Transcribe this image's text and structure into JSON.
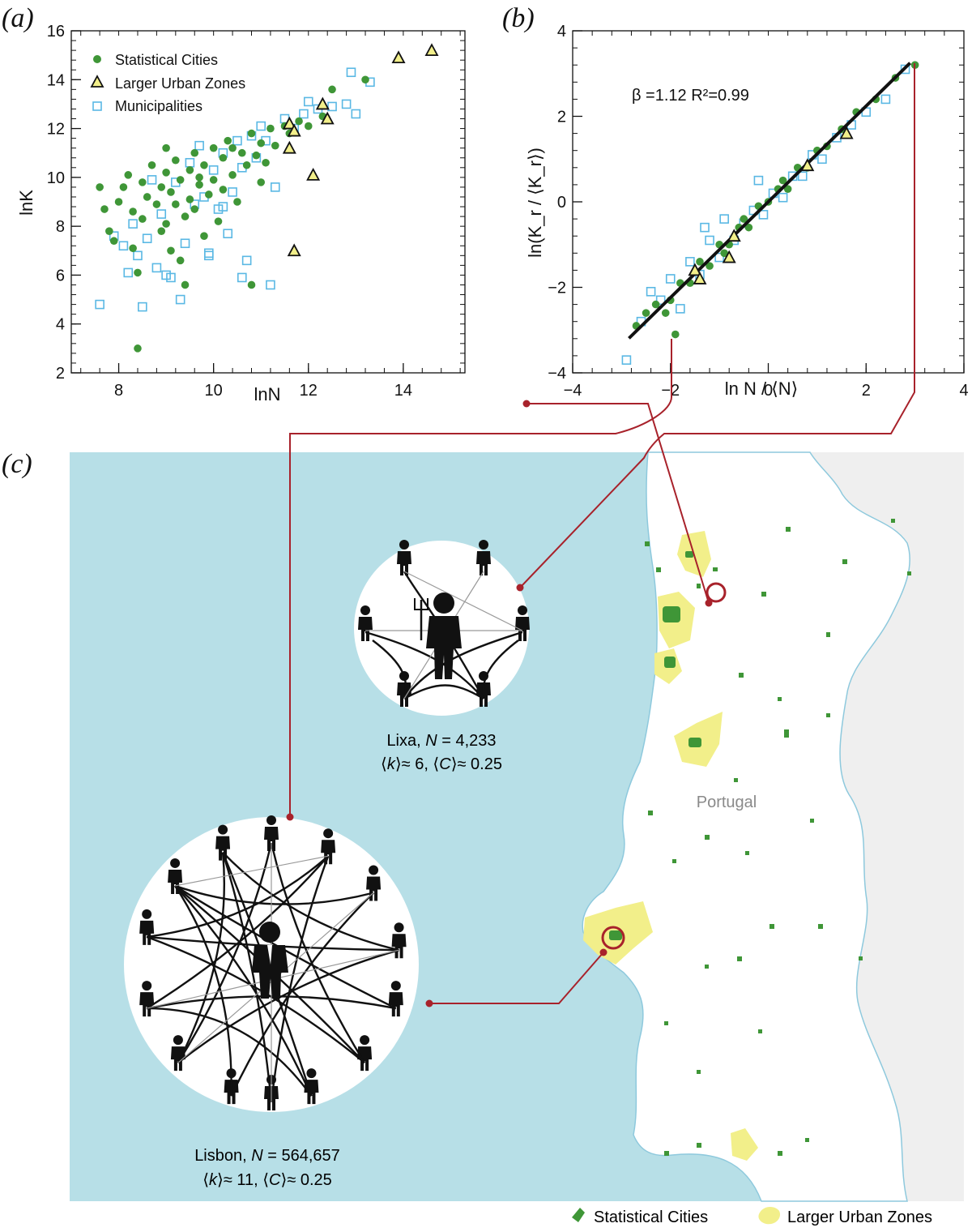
{
  "panels": {
    "a": "(a)",
    "b": "(b)",
    "c": "(c)"
  },
  "colors": {
    "statistical": "#3f9637",
    "luz_fill": "#f2ef8a",
    "municipality": "#5ab8e4",
    "sea": "#b7dfe7",
    "land": "#ffffff",
    "foreign": "#efefef",
    "link": "#a8222b",
    "fit": "#111111"
  },
  "chart_data": [
    {
      "id": "a",
      "type": "scatter",
      "title": "",
      "xlabel": "lnN",
      "ylabel": "lnK",
      "xlim": [
        7,
        15.3
      ],
      "ylim": [
        2,
        16
      ],
      "xticks": [
        8,
        10,
        12,
        14
      ],
      "yticks": [
        2,
        4,
        6,
        8,
        10,
        12,
        14,
        16
      ],
      "legend": {
        "position": "top-left",
        "entries": [
          "Statistical Cities",
          "Larger Urban Zones",
          "Municipalities"
        ]
      },
      "series": [
        {
          "name": "Statistical Cities",
          "marker": "circle",
          "points": [
            [
              7.6,
              9.6
            ],
            [
              7.7,
              8.7
            ],
            [
              7.8,
              7.8
            ],
            [
              7.9,
              7.4
            ],
            [
              8.0,
              9.0
            ],
            [
              8.1,
              9.6
            ],
            [
              8.2,
              10.1
            ],
            [
              8.3,
              8.6
            ],
            [
              8.3,
              7.1
            ],
            [
              8.4,
              6.1
            ],
            [
              8.5,
              9.8
            ],
            [
              8.5,
              8.3
            ],
            [
              8.6,
              9.2
            ],
            [
              8.7,
              10.5
            ],
            [
              8.8,
              8.9
            ],
            [
              8.9,
              9.6
            ],
            [
              8.9,
              7.8
            ],
            [
              9.0,
              10.2
            ],
            [
              9.0,
              8.1
            ],
            [
              9.1,
              9.4
            ],
            [
              9.1,
              7.0
            ],
            [
              9.2,
              10.7
            ],
            [
              9.2,
              8.9
            ],
            [
              9.3,
              9.9
            ],
            [
              9.3,
              6.6
            ],
            [
              9.4,
              8.4
            ],
            [
              9.4,
              5.6
            ],
            [
              9.5,
              10.3
            ],
            [
              9.5,
              9.1
            ],
            [
              9.6,
              11.0
            ],
            [
              9.6,
              8.7
            ],
            [
              9.7,
              9.7
            ],
            [
              9.8,
              10.5
            ],
            [
              9.8,
              7.6
            ],
            [
              9.9,
              9.3
            ],
            [
              10.0,
              11.2
            ],
            [
              10.0,
              9.9
            ],
            [
              10.1,
              8.2
            ],
            [
              10.2,
              10.8
            ],
            [
              10.2,
              9.5
            ],
            [
              10.3,
              11.5
            ],
            [
              10.4,
              10.1
            ],
            [
              10.5,
              9.0
            ],
            [
              10.6,
              11.0
            ],
            [
              10.7,
              10.5
            ],
            [
              10.8,
              11.8
            ],
            [
              10.9,
              10.9
            ],
            [
              11.0,
              11.4
            ],
            [
              11.0,
              9.8
            ],
            [
              11.1,
              10.6
            ],
            [
              11.2,
              12.0
            ],
            [
              11.3,
              11.3
            ],
            [
              11.5,
              12.1
            ],
            [
              11.6,
              11.8
            ],
            [
              11.8,
              12.3
            ],
            [
              12.0,
              12.1
            ],
            [
              12.3,
              12.5
            ],
            [
              12.5,
              13.6
            ],
            [
              13.2,
              14.0
            ],
            [
              10.8,
              5.6
            ],
            [
              8.4,
              3.0
            ],
            [
              9.0,
              11.2
            ],
            [
              9.7,
              10.0
            ],
            [
              10.4,
              11.2
            ]
          ]
        },
        {
          "name": "Larger Urban Zones",
          "marker": "triangle",
          "points": [
            [
              14.6,
              15.2
            ],
            [
              13.9,
              14.9
            ],
            [
              12.3,
              13.0
            ],
            [
              12.4,
              12.4
            ],
            [
              11.6,
              12.2
            ],
            [
              11.7,
              11.9
            ],
            [
              11.6,
              11.2
            ],
            [
              12.1,
              10.1
            ],
            [
              11.7,
              7.0
            ]
          ]
        },
        {
          "name": "Municipalities",
          "marker": "square",
          "points": [
            [
              7.6,
              4.8
            ],
            [
              7.9,
              7.6
            ],
            [
              8.1,
              7.2
            ],
            [
              8.2,
              6.1
            ],
            [
              8.3,
              8.1
            ],
            [
              8.4,
              6.8
            ],
            [
              8.5,
              4.7
            ],
            [
              8.6,
              7.5
            ],
            [
              8.7,
              9.9
            ],
            [
              8.8,
              6.3
            ],
            [
              8.9,
              8.5
            ],
            [
              9.0,
              6.0
            ],
            [
              9.1,
              5.9
            ],
            [
              9.2,
              9.8
            ],
            [
              9.3,
              5.0
            ],
            [
              9.4,
              7.3
            ],
            [
              9.5,
              10.6
            ],
            [
              9.6,
              8.9
            ],
            [
              9.7,
              11.3
            ],
            [
              9.8,
              9.2
            ],
            [
              9.9,
              6.8
            ],
            [
              10.0,
              10.3
            ],
            [
              10.1,
              8.7
            ],
            [
              10.2,
              11.0
            ],
            [
              10.3,
              7.7
            ],
            [
              10.4,
              9.4
            ],
            [
              10.5,
              11.5
            ],
            [
              10.6,
              10.4
            ],
            [
              10.7,
              6.6
            ],
            [
              10.8,
              11.7
            ],
            [
              10.9,
              10.8
            ],
            [
              11.0,
              12.1
            ],
            [
              11.1,
              11.5
            ],
            [
              11.2,
              5.6
            ],
            [
              11.3,
              9.6
            ],
            [
              11.5,
              12.4
            ],
            [
              11.7,
              12.0
            ],
            [
              11.9,
              12.6
            ],
            [
              12.0,
              13.1
            ],
            [
              12.2,
              12.8
            ],
            [
              12.5,
              12.9
            ],
            [
              12.8,
              13.0
            ],
            [
              13.0,
              12.6
            ],
            [
              13.3,
              13.9
            ],
            [
              10.6,
              5.9
            ],
            [
              9.9,
              6.9
            ],
            [
              10.2,
              8.8
            ],
            [
              12.9,
              14.3
            ]
          ]
        }
      ]
    },
    {
      "id": "b",
      "type": "scatter",
      "title": "",
      "xlabel": "ln N / ⟨N⟩",
      "ylabel": "ln(K_r / ⟨K_r⟩)",
      "xlim": [
        -4,
        4
      ],
      "ylim": [
        -4,
        4
      ],
      "xticks": [
        -4,
        -2,
        0,
        2,
        4
      ],
      "yticks": [
        -4,
        -2,
        0,
        2,
        4
      ],
      "annotation": "β =1.12  R²=0.99",
      "fit": {
        "slope": 1.12,
        "intercept": 0,
        "x_range": [
          -2.85,
          2.9
        ]
      },
      "series": [
        {
          "name": "Statistical Cities",
          "marker": "circle",
          "points": [
            [
              -2.7,
              -2.9
            ],
            [
              -2.5,
              -2.6
            ],
            [
              -2.3,
              -2.4
            ],
            [
              -2.1,
              -2.6
            ],
            [
              -2.0,
              -2.3
            ],
            [
              -1.9,
              -3.1
            ],
            [
              -1.8,
              -1.9
            ],
            [
              -1.6,
              -1.9
            ],
            [
              -1.4,
              -1.4
            ],
            [
              -1.2,
              -1.5
            ],
            [
              -1.0,
              -1.0
            ],
            [
              -0.8,
              -1.0
            ],
            [
              -0.6,
              -0.6
            ],
            [
              -0.4,
              -0.6
            ],
            [
              -0.2,
              -0.1
            ],
            [
              0.0,
              0.0
            ],
            [
              0.2,
              0.3
            ],
            [
              0.4,
              0.3
            ],
            [
              0.6,
              0.8
            ],
            [
              0.8,
              0.8
            ],
            [
              1.0,
              1.2
            ],
            [
              1.2,
              1.3
            ],
            [
              1.5,
              1.7
            ],
            [
              1.8,
              2.1
            ],
            [
              2.2,
              2.4
            ],
            [
              2.6,
              2.9
            ],
            [
              3.0,
              3.2
            ],
            [
              -0.9,
              -1.2
            ],
            [
              -0.5,
              -0.4
            ],
            [
              0.3,
              0.5
            ]
          ]
        },
        {
          "name": "Larger Urban Zones",
          "marker": "triangle",
          "points": [
            [
              1.6,
              1.6
            ],
            [
              0.8,
              0.85
            ],
            [
              -0.7,
              -0.8
            ],
            [
              -0.8,
              -1.3
            ],
            [
              -1.5,
              -1.6
            ],
            [
              -1.4,
              -1.8
            ]
          ]
        },
        {
          "name": "Municipalities",
          "marker": "square",
          "points": [
            [
              -2.9,
              -3.7
            ],
            [
              -2.4,
              -2.1
            ],
            [
              -2.2,
              -2.3
            ],
            [
              -2.0,
              -1.8
            ],
            [
              -1.8,
              -2.5
            ],
            [
              -1.6,
              -1.4
            ],
            [
              -1.4,
              -1.7
            ],
            [
              -1.2,
              -0.9
            ],
            [
              -1.0,
              -1.3
            ],
            [
              -0.9,
              -0.4
            ],
            [
              -0.7,
              -0.9
            ],
            [
              -0.5,
              -0.5
            ],
            [
              -0.3,
              -0.2
            ],
            [
              -0.1,
              -0.3
            ],
            [
              0.1,
              0.2
            ],
            [
              0.3,
              0.1
            ],
            [
              0.5,
              0.6
            ],
            [
              0.7,
              0.6
            ],
            [
              0.9,
              1.1
            ],
            [
              1.1,
              1.0
            ],
            [
              1.4,
              1.5
            ],
            [
              1.7,
              1.8
            ],
            [
              2.0,
              2.1
            ],
            [
              2.4,
              2.4
            ],
            [
              2.8,
              3.1
            ],
            [
              -1.3,
              -0.6
            ],
            [
              -2.6,
              -2.8
            ],
            [
              -0.2,
              0.5
            ]
          ]
        }
      ]
    }
  ],
  "map": {
    "country_label": "Portugal",
    "legend": {
      "statistical": "Statistical Cities",
      "luz": "Larger Urban Zones"
    }
  },
  "networks": {
    "lixa": {
      "name": "Lixa,",
      "n_label": "N",
      "n_value": "= 4,233",
      "k_label": "k",
      "k_value": "≈ 6,",
      "c_label": "C",
      "c_value": "≈ 0.25"
    },
    "lisbon": {
      "name": "Lisbon,",
      "n_label": "N",
      "n_value": "= 564,657",
      "k_label": "k",
      "k_value": "≈ 11,",
      "c_label": "C",
      "c_value": "≈ 0.25"
    }
  }
}
